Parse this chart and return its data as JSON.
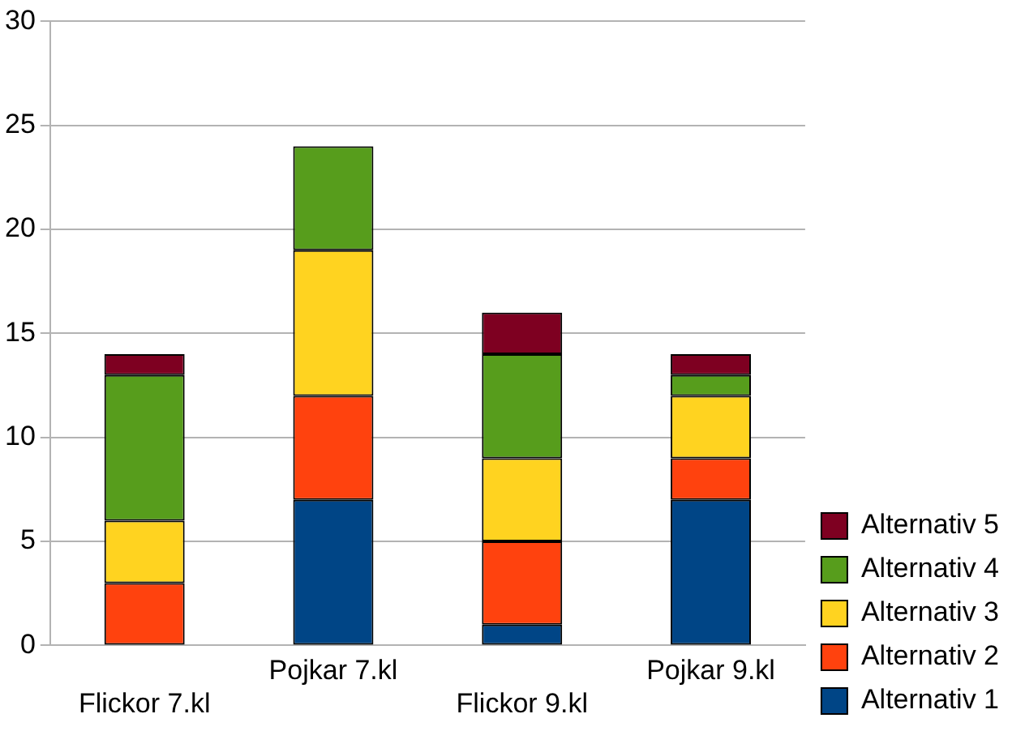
{
  "chart_data": {
    "type": "bar",
    "stacked": true,
    "categories": [
      "Flickor 7.kl",
      "Pojkar 7.kl",
      "Flickor 9.kl",
      "Pojkar 9.kl"
    ],
    "series": [
      {
        "name": "Alternativ 1",
        "color": "#004586",
        "values": [
          0,
          7,
          1,
          7
        ]
      },
      {
        "name": "Alternativ 2",
        "color": "#ff420e",
        "values": [
          3,
          5,
          4,
          2
        ]
      },
      {
        "name": "Alternativ 3",
        "color": "#ffd320",
        "values": [
          3,
          7,
          4,
          3
        ]
      },
      {
        "name": "Alternativ 4",
        "color": "#579d1c",
        "values": [
          7,
          5,
          5,
          1
        ]
      },
      {
        "name": "Alternativ 5",
        "color": "#7e0021",
        "values": [
          1,
          0,
          2,
          1
        ]
      }
    ],
    "ylim": [
      0,
      30
    ],
    "yticks": [
      0,
      5,
      10,
      15,
      20,
      25,
      30
    ],
    "grid": "y",
    "legend": "right"
  }
}
